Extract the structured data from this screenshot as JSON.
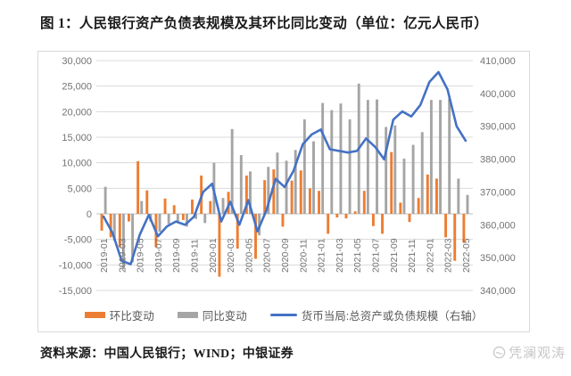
{
  "page": {
    "title": "图 1：人民银行资产负债表规模及其环比同比变动（单位：亿元人民币）",
    "source": "资料来源：中国人民银行；WIND；中银证券",
    "watermark": "凭澜观涛"
  },
  "chart_data": {
    "type": "bar+line combo, dual axis",
    "categories": [
      "2019-01",
      "2019-02",
      "2019-03",
      "2019-04",
      "2019-05",
      "2019-06",
      "2019-07",
      "2019-08",
      "2019-09",
      "2019-10",
      "2019-11",
      "2019-12",
      "2020-01",
      "2020-02",
      "2020-03",
      "2020-04",
      "2020-05",
      "2020-06",
      "2020-07",
      "2020-08",
      "2020-09",
      "2020-10",
      "2020-11",
      "2020-12",
      "2021-01",
      "2021-02",
      "2021-03",
      "2021-04",
      "2021-05",
      "2021-06",
      "2021-07",
      "2021-08",
      "2021-09",
      "2021-10",
      "2021-11",
      "2021-12",
      "2022-01",
      "2022-02",
      "2022-03",
      "2022-04",
      "2022-05"
    ],
    "x_tick_every": 2,
    "series": [
      {
        "name": "环比变动",
        "type": "bar",
        "axis": "left",
        "color": "#ED7D31",
        "values": [
          -3300,
          -4600,
          -6500,
          -1500,
          10300,
          4600,
          -6500,
          3000,
          1700,
          -1200,
          2800,
          7500,
          2500,
          -12300,
          4300,
          -6800,
          7500,
          -8800,
          6600,
          8700,
          -2500,
          6500,
          8500,
          5000,
          4500,
          -3900,
          -700,
          -900,
          500,
          4500,
          -2400,
          -3900,
          12100,
          2200,
          -1600,
          3100,
          7700,
          6900,
          -4600,
          -9200,
          -5600
        ]
      },
      {
        "name": "同比变动",
        "type": "bar",
        "axis": "left",
        "color": "#A5A5A5",
        "values": [
          5300,
          -5300,
          -10800,
          -9500,
          2500,
          -1500,
          -3500,
          -2000,
          -1500,
          -2500,
          -1000,
          -1800,
          10000,
          3100,
          16600,
          11500,
          8300,
          -4200,
          9200,
          12000,
          10400,
          12500,
          18500,
          14200,
          21700,
          20300,
          21600,
          18500,
          25500,
          22300,
          22400,
          17000,
          17300,
          10800,
          13500,
          16000,
          22300,
          22300,
          22600,
          6900,
          3700
        ]
      },
      {
        "name": "货币当局:总资产或负债规模（右轴）",
        "type": "line",
        "axis": "right",
        "color": "#4472C4",
        "values": [
          362500,
          357500,
          349000,
          348000,
          357000,
          363000,
          356500,
          359500,
          361000,
          360000,
          362500,
          370000,
          372500,
          361000,
          367000,
          360000,
          367500,
          358000,
          364500,
          374000,
          371500,
          376500,
          384500,
          387500,
          389000,
          383000,
          382500,
          382000,
          382500,
          386300,
          383700,
          379900,
          392000,
          394500,
          393000,
          396500,
          403500,
          406500,
          401200,
          390000,
          385600
        ]
      }
    ],
    "left_axis": {
      "min": -15000,
      "max": 30000,
      "step": 5000
    },
    "right_axis": {
      "min": 340000,
      "max": 410000,
      "step": 10000
    },
    "grid": true,
    "legend_position": "bottom",
    "colors": {
      "gridline": "#D9D9D9",
      "zero_line": "#BFBFBF",
      "tick_text": "#737373",
      "legend_text": "#595959"
    }
  }
}
